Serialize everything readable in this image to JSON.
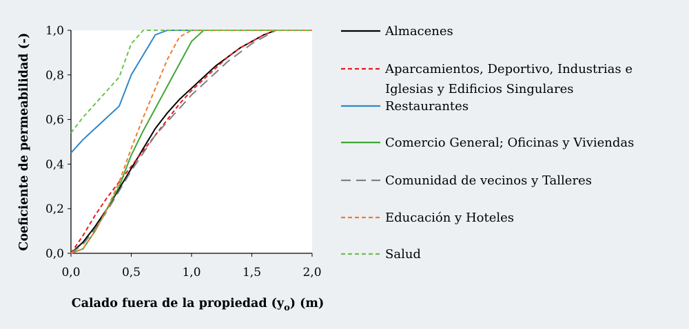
{
  "chart_data": {
    "type": "line",
    "xlabel": "Calado fuera de la propiedad (y",
    "xlabel_sub": "o",
    "xlabel_suffix": ") (m)",
    "ylabel": "Coeficiente de permeabilidad (-)",
    "xlim": [
      0,
      2
    ],
    "ylim": [
      0,
      1
    ],
    "xticks": [
      0,
      0.5,
      1,
      1.5,
      2
    ],
    "xtick_labels": [
      "0,0",
      "0,5",
      "1,0",
      "1,5",
      "2,0"
    ],
    "yticks": [
      0,
      0.2,
      0.4,
      0.6,
      0.8,
      1.0
    ],
    "ytick_labels": [
      "0,0",
      "0,2",
      "0,4",
      "0,6",
      "0,8",
      "1,0"
    ],
    "grid": false,
    "legend_position": "right",
    "series": [
      {
        "name": "Almacenes",
        "color": "#000000",
        "dash": "solid",
        "points": [
          [
            0,
            0
          ],
          [
            0.1,
            0.05
          ],
          [
            0.2,
            0.12
          ],
          [
            0.3,
            0.2
          ],
          [
            0.4,
            0.29
          ],
          [
            0.5,
            0.38
          ],
          [
            0.6,
            0.47
          ],
          [
            0.7,
            0.56
          ],
          [
            0.8,
            0.63
          ],
          [
            0.9,
            0.69
          ],
          [
            1.0,
            0.74
          ],
          [
            1.1,
            0.79
          ],
          [
            1.2,
            0.84
          ],
          [
            1.3,
            0.88
          ],
          [
            1.4,
            0.92
          ],
          [
            1.5,
            0.95
          ],
          [
            1.6,
            0.98
          ],
          [
            1.7,
            1.0
          ],
          [
            2.0,
            1.0
          ]
        ]
      },
      {
        "name": "Aparcamientos, Deportivo, Industrias e Iglesias y Edificios Singulares",
        "name_lines": [
          "Aparcamientos, Deportivo, Industrias e",
          "Iglesias y Edificios Singulares"
        ],
        "color": "#e8191e",
        "dash": "dashed",
        "points": [
          [
            0,
            0
          ],
          [
            0.1,
            0.08
          ],
          [
            0.2,
            0.17
          ],
          [
            0.3,
            0.25
          ],
          [
            0.4,
            0.32
          ],
          [
            0.5,
            0.39
          ],
          [
            0.6,
            0.46
          ],
          [
            0.7,
            0.53
          ],
          [
            0.8,
            0.6
          ],
          [
            0.9,
            0.67
          ],
          [
            1.0,
            0.73
          ],
          [
            1.1,
            0.78
          ],
          [
            1.2,
            0.83
          ],
          [
            1.3,
            0.88
          ],
          [
            1.4,
            0.92
          ],
          [
            1.5,
            0.95
          ],
          [
            1.6,
            0.98
          ],
          [
            1.7,
            1.0
          ],
          [
            2.0,
            1.0
          ]
        ]
      },
      {
        "name": "Restaurantes",
        "color": "#2e86c8",
        "dash": "solid",
        "points": [
          [
            0,
            0.45
          ],
          [
            0.1,
            0.51
          ],
          [
            0.2,
            0.56
          ],
          [
            0.3,
            0.61
          ],
          [
            0.4,
            0.66
          ],
          [
            0.5,
            0.8
          ],
          [
            0.6,
            0.89
          ],
          [
            0.7,
            0.98
          ],
          [
            0.8,
            1.0
          ],
          [
            2.0,
            1.0
          ]
        ]
      },
      {
        "name": "Comercio General; Oficinas y Viviendas",
        "color": "#3fa535",
        "dash": "solid",
        "points": [
          [
            0,
            0
          ],
          [
            0.1,
            0.02
          ],
          [
            0.2,
            0.1
          ],
          [
            0.3,
            0.2
          ],
          [
            0.4,
            0.3
          ],
          [
            0.5,
            0.44
          ],
          [
            0.6,
            0.55
          ],
          [
            0.7,
            0.65
          ],
          [
            0.8,
            0.75
          ],
          [
            0.9,
            0.85
          ],
          [
            1.0,
            0.95
          ],
          [
            1.1,
            1.0
          ],
          [
            2.0,
            1.0
          ]
        ]
      },
      {
        "name": "Comunidad de vecinos y Talleres",
        "color": "#808080",
        "dash": "longdash",
        "points": [
          [
            0,
            0
          ],
          [
            0.1,
            0.04
          ],
          [
            0.2,
            0.11
          ],
          [
            0.3,
            0.19
          ],
          [
            0.4,
            0.28
          ],
          [
            0.5,
            0.37
          ],
          [
            0.6,
            0.45
          ],
          [
            0.7,
            0.53
          ],
          [
            0.8,
            0.59
          ],
          [
            0.9,
            0.65
          ],
          [
            1.0,
            0.71
          ],
          [
            1.1,
            0.76
          ],
          [
            1.2,
            0.81
          ],
          [
            1.3,
            0.86
          ],
          [
            1.4,
            0.9
          ],
          [
            1.5,
            0.94
          ],
          [
            1.6,
            0.97
          ],
          [
            1.7,
            1.0
          ],
          [
            2.0,
            1.0
          ]
        ]
      },
      {
        "name": "Educación y Hoteles",
        "color": "#f07c2a",
        "dash": "dashed",
        "points": [
          [
            0,
            0
          ],
          [
            0.1,
            0.02
          ],
          [
            0.2,
            0.1
          ],
          [
            0.3,
            0.2
          ],
          [
            0.4,
            0.32
          ],
          [
            0.5,
            0.47
          ],
          [
            0.6,
            0.61
          ],
          [
            0.7,
            0.74
          ],
          [
            0.8,
            0.87
          ],
          [
            0.9,
            0.97
          ],
          [
            1.0,
            1.0
          ],
          [
            2.0,
            1.0
          ]
        ]
      },
      {
        "name": "Salud",
        "color": "#6cc24a",
        "dash": "dashed",
        "points": [
          [
            0,
            0.54
          ],
          [
            0.1,
            0.61
          ],
          [
            0.2,
            0.67
          ],
          [
            0.3,
            0.73
          ],
          [
            0.4,
            0.79
          ],
          [
            0.5,
            0.94
          ],
          [
            0.6,
            1.0
          ],
          [
            2.0,
            1.0
          ]
        ]
      }
    ]
  }
}
